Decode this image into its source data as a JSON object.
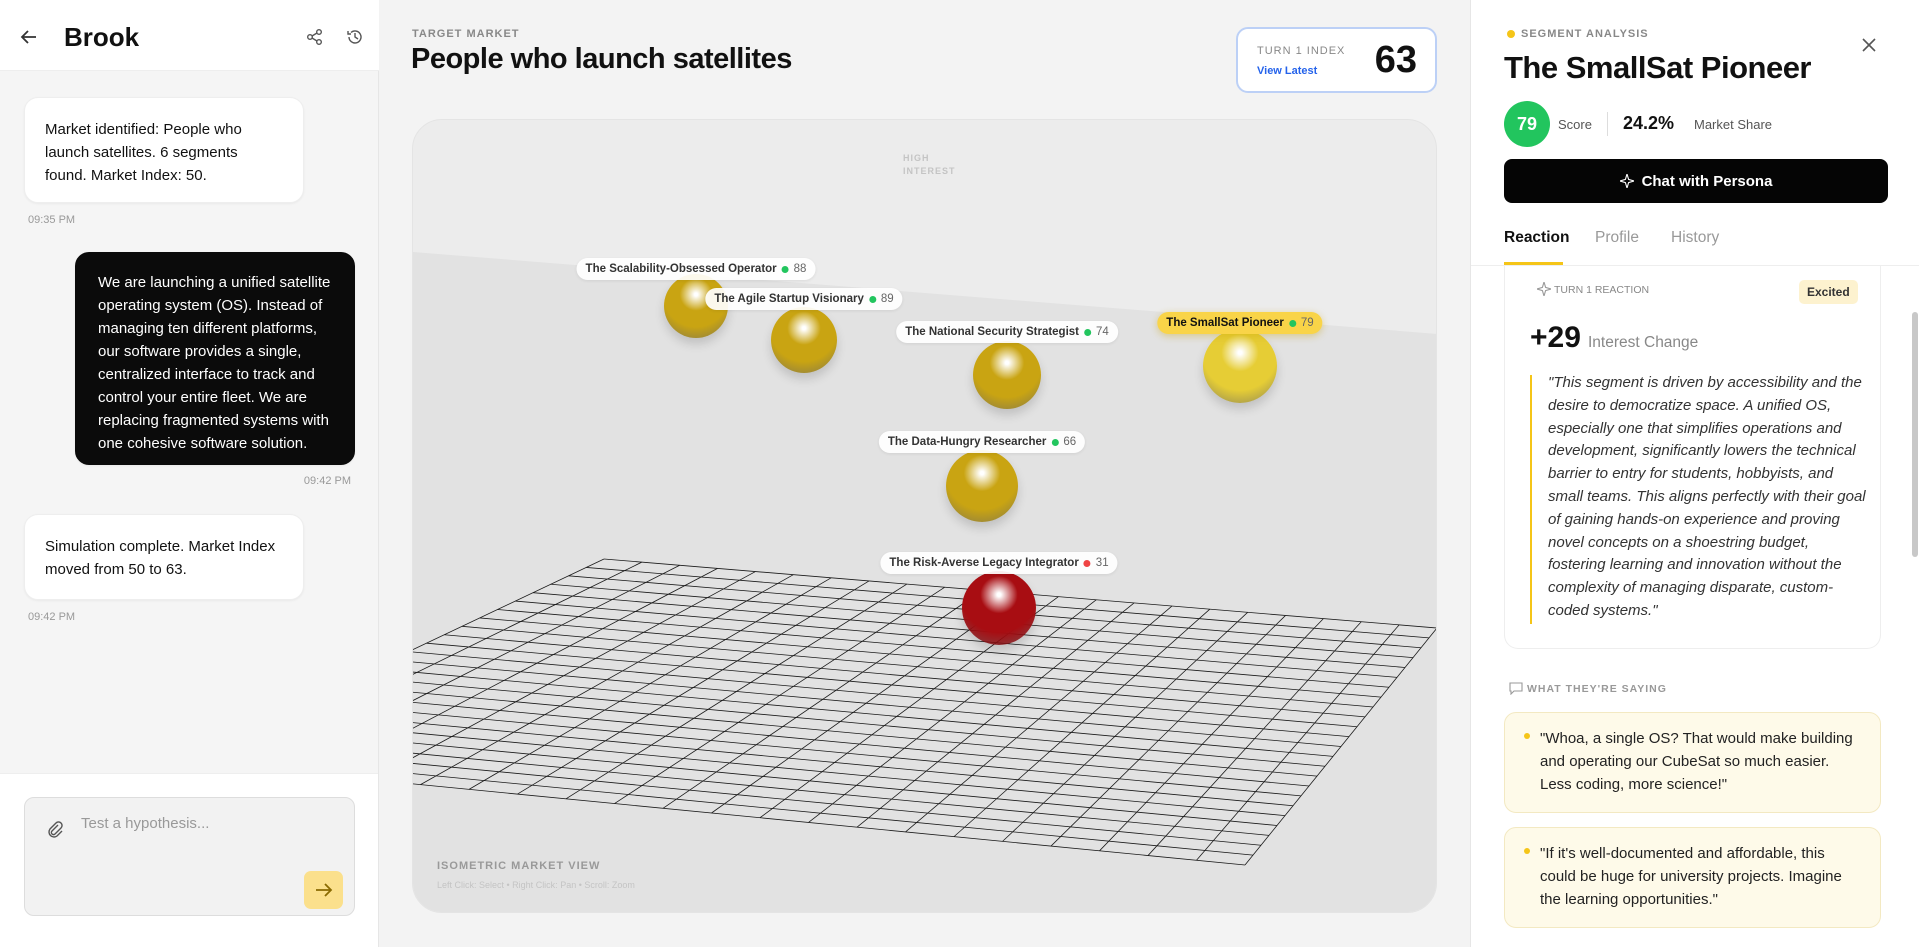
{
  "sidebar": {
    "title": "Brook",
    "messages": [
      {
        "text": "Market identified: People who launch satellites. 6 segments found. Market Index: 50.",
        "time": "09:35 PM"
      },
      {
        "text": "We are launching a unified satellite operating system (OS). Instead of managing ten different platforms, our software provides a single, centralized interface to track and control your entire fleet. We are replacing fragmented systems with one cohesive software solution.",
        "time": "09:42 PM"
      },
      {
        "text": "Simulation complete. Market Index moved from 50 to 63.",
        "time": "09:42 PM"
      }
    ],
    "input_placeholder": "Test a hypothesis..."
  },
  "main": {
    "label": "TARGET MARKET",
    "title": "People who launch satellites",
    "index": {
      "label": "TURN 1 INDEX",
      "link": "View Latest",
      "value": 63
    },
    "view": {
      "axis_label": "HIGH INTEREST",
      "footer": "ISOMETRIC MARKET VIEW",
      "hint": "Left Click: Select • Right Click: Pan • Scroll: Zoom"
    },
    "segments": [
      {
        "name": "The Scalability-Obsessed Operator",
        "score": 88,
        "status_color": "#22c55e",
        "color": "#c9a412"
      },
      {
        "name": "The Agile Startup Visionary",
        "score": 89,
        "status_color": "#22c55e",
        "color": "#c9a412"
      },
      {
        "name": "The National Security Strategist",
        "score": 74,
        "status_color": "#22c55e",
        "color": "#c9a412"
      },
      {
        "name": "The SmallSat Pioneer",
        "score": 79,
        "status_color": "#22c55e",
        "color": "#e6cd35"
      },
      {
        "name": "The Data-Hungry Researcher",
        "score": 66,
        "status_color": "#22c55e",
        "color": "#c9a412"
      },
      {
        "name": "The Risk-Averse Legacy Integrator",
        "score": 31,
        "status_color": "#ef4444",
        "color": "#a80d12"
      }
    ]
  },
  "panel": {
    "label": "SEGMENT ANALYSIS",
    "title": "The SmallSat Pioneer",
    "score": 79,
    "score_label": "Score",
    "share": "24.2%",
    "share_label": "Market Share",
    "button": "Chat with Persona",
    "tabs": [
      "Reaction",
      "Profile",
      "History"
    ],
    "reaction": {
      "label": "TURN 1 REACTION",
      "badge": "Excited",
      "change": "+29",
      "change_label": "Interest Change",
      "quote": "\"This segment is driven by accessibility and the desire to democratize space. A unified OS, especially one that simplifies operations and development, significantly lowers the technical barrier to entry for students, hobbyists, and small teams. This aligns perfectly with their goal of gaining hands-on experience and proving novel concepts on a shoestring budget, fostering learning and innovation without the complexity of managing disparate, custom-coded systems.\""
    },
    "sayings": {
      "label": "WHAT THEY'RE SAYING",
      "quotes": [
        "\"Whoa, a single OS? That would make building and operating our CubeSat so much easier. Less coding, more science!\"",
        "\"If it's well-documented and affordable, this could be huge for university projects. Imagine the learning opportunities.\""
      ]
    }
  }
}
